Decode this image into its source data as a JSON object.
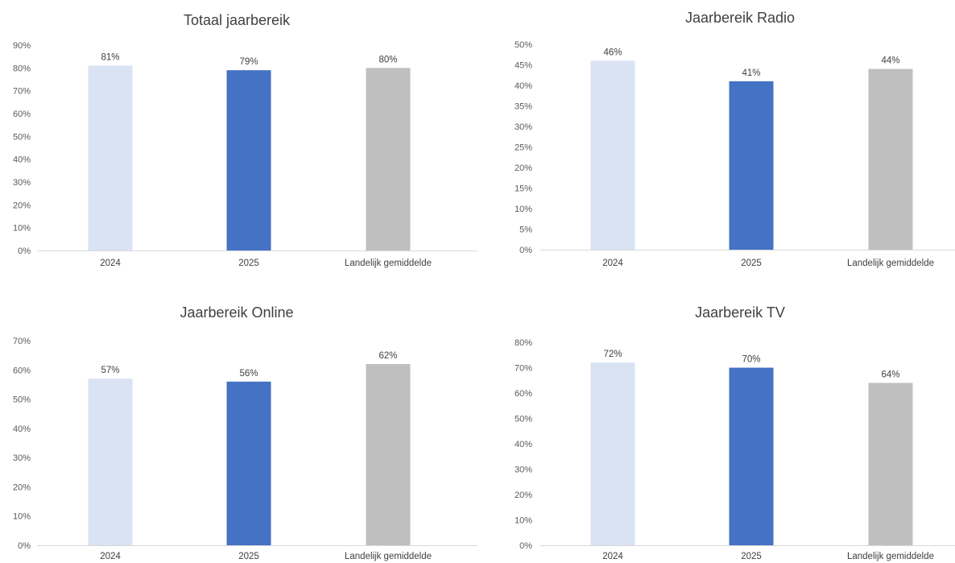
{
  "colors": {
    "bar_2024": "#dae3f3",
    "bar_2025": "#4472c4",
    "bar_avg": "#bfbfbf",
    "axis_line": "#d9d9d9"
  },
  "chart_data": [
    {
      "type": "bar",
      "title": "Totaal jaarbereik",
      "categories": [
        "2024",
        "2025",
        "Landelijk gemiddelde"
      ],
      "values": [
        81,
        79,
        80
      ],
      "value_labels": [
        "81%",
        "79%",
        "80%"
      ],
      "ylim": [
        0,
        90
      ],
      "ytick_step": 10,
      "ytick_labels": [
        "0%",
        "10%",
        "20%",
        "30%",
        "40%",
        "50%",
        "60%",
        "70%",
        "80%",
        "90%"
      ],
      "grid": false,
      "legend": "none"
    },
    {
      "type": "bar",
      "title": "Jaarbereik Radio",
      "categories": [
        "2024",
        "2025",
        "Landelijk gemiddelde"
      ],
      "values": [
        46,
        41,
        44
      ],
      "value_labels": [
        "46%",
        "41%",
        "44%"
      ],
      "ylim": [
        0,
        50
      ],
      "ytick_step": 5,
      "ytick_labels": [
        "0%",
        "5%",
        "10%",
        "15%",
        "20%",
        "25%",
        "30%",
        "35%",
        "40%",
        "45%",
        "50%"
      ],
      "grid": false,
      "legend": "none"
    },
    {
      "type": "bar",
      "title": "Jaarbereik Online",
      "categories": [
        "2024",
        "2025",
        "Landelijk gemiddelde"
      ],
      "values": [
        57,
        56,
        62
      ],
      "value_labels": [
        "57%",
        "56%",
        "62%"
      ],
      "ylim": [
        0,
        70
      ],
      "ytick_step": 10,
      "ytick_labels": [
        "0%",
        "10%",
        "20%",
        "30%",
        "40%",
        "50%",
        "60%",
        "70%"
      ],
      "grid": false,
      "legend": "none"
    },
    {
      "type": "bar",
      "title": "Jaarbereik TV",
      "categories": [
        "2024",
        "2025",
        "Landelijk gemiddelde"
      ],
      "values": [
        72,
        70,
        64
      ],
      "value_labels": [
        "72%",
        "70%",
        "64%"
      ],
      "ylim": [
        0,
        80
      ],
      "ytick_step": 10,
      "ytick_labels": [
        "0%",
        "10%",
        "20%",
        "30%",
        "40%",
        "50%",
        "60%",
        "70%",
        "80%"
      ],
      "grid": false,
      "legend": "none"
    }
  ]
}
